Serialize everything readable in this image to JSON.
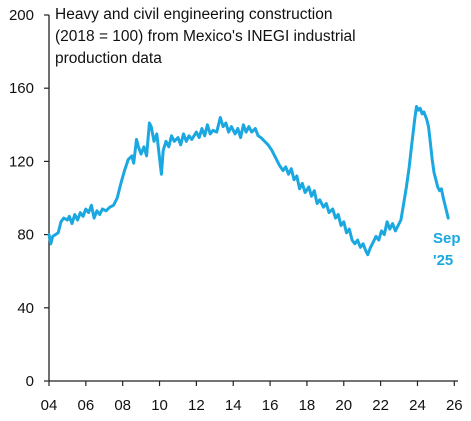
{
  "chart_data": {
    "type": "line",
    "title_lines": [
      "Heavy and civil engineering construction",
      "(2018 = 100) from Mexico's INEGI industrial",
      "production data"
    ],
    "xlabel": "",
    "ylabel": "",
    "xlim": [
      2004,
      2026.2
    ],
    "ylim": [
      0,
      200
    ],
    "yticks": [
      0,
      40,
      80,
      120,
      160,
      200
    ],
    "ytick_labels": [
      "0",
      "40",
      "80",
      "120",
      "160",
      "200"
    ],
    "xticks": [
      2004,
      2006,
      2008,
      2010,
      2012,
      2014,
      2016,
      2018,
      2020,
      2022,
      2024,
      2026
    ],
    "xtick_labels": [
      "04",
      "06",
      "08",
      "10",
      "12",
      "14",
      "16",
      "18",
      "20",
      "22",
      "24",
      "26"
    ],
    "grid": false,
    "annotation": {
      "line1": "Sep",
      "line2": "'25",
      "x": 2025.67,
      "y": 89
    },
    "series": [
      {
        "color": "#1BA8E0",
        "points": [
          [
            2004.0,
            80
          ],
          [
            2004.1,
            75
          ],
          [
            2004.2,
            79
          ],
          [
            2004.35,
            80
          ],
          [
            2004.5,
            81
          ],
          [
            2004.65,
            87
          ],
          [
            2004.8,
            89
          ],
          [
            2005.0,
            88
          ],
          [
            2005.1,
            90
          ],
          [
            2005.25,
            86
          ],
          [
            2005.4,
            91
          ],
          [
            2005.55,
            88
          ],
          [
            2005.7,
            92
          ],
          [
            2005.85,
            90
          ],
          [
            2006.0,
            94
          ],
          [
            2006.15,
            92
          ],
          [
            2006.3,
            96
          ],
          [
            2006.45,
            89
          ],
          [
            2006.6,
            93
          ],
          [
            2006.75,
            91
          ],
          [
            2006.9,
            94
          ],
          [
            2007.1,
            93
          ],
          [
            2007.3,
            95
          ],
          [
            2007.5,
            96
          ],
          [
            2007.7,
            100
          ],
          [
            2007.9,
            108
          ],
          [
            2008.1,
            115
          ],
          [
            2008.3,
            121
          ],
          [
            2008.5,
            123
          ],
          [
            2008.6,
            119
          ],
          [
            2008.75,
            132
          ],
          [
            2008.85,
            128
          ],
          [
            2009.0,
            124
          ],
          [
            2009.15,
            128
          ],
          [
            2009.3,
            123
          ],
          [
            2009.45,
            141
          ],
          [
            2009.55,
            139
          ],
          [
            2009.7,
            131
          ],
          [
            2009.85,
            135
          ],
          [
            2010.0,
            122
          ],
          [
            2010.1,
            113
          ],
          [
            2010.2,
            126
          ],
          [
            2010.35,
            131
          ],
          [
            2010.5,
            128
          ],
          [
            2010.65,
            134
          ],
          [
            2010.8,
            131
          ],
          [
            2011.0,
            133
          ],
          [
            2011.15,
            129
          ],
          [
            2011.3,
            135
          ],
          [
            2011.45,
            131
          ],
          [
            2011.6,
            134
          ],
          [
            2011.75,
            132
          ],
          [
            2012.0,
            136
          ],
          [
            2012.15,
            133
          ],
          [
            2012.3,
            138
          ],
          [
            2012.45,
            134
          ],
          [
            2012.6,
            140
          ],
          [
            2012.75,
            135
          ],
          [
            2012.9,
            137
          ],
          [
            2013.1,
            136
          ],
          [
            2013.3,
            144
          ],
          [
            2013.45,
            139
          ],
          [
            2013.6,
            141
          ],
          [
            2013.75,
            136
          ],
          [
            2013.9,
            139
          ],
          [
            2014.1,
            135
          ],
          [
            2014.25,
            138
          ],
          [
            2014.4,
            133
          ],
          [
            2014.55,
            140
          ],
          [
            2014.7,
            136
          ],
          [
            2014.85,
            139
          ],
          [
            2015.0,
            136
          ],
          [
            2015.2,
            138
          ],
          [
            2015.35,
            134
          ],
          [
            2015.5,
            133
          ],
          [
            2015.7,
            131
          ],
          [
            2015.9,
            129
          ],
          [
            2016.1,
            126
          ],
          [
            2016.3,
            122
          ],
          [
            2016.5,
            118
          ],
          [
            2016.7,
            115
          ],
          [
            2016.85,
            117
          ],
          [
            2017.0,
            113
          ],
          [
            2017.15,
            116
          ],
          [
            2017.3,
            110
          ],
          [
            2017.45,
            112
          ],
          [
            2017.6,
            105
          ],
          [
            2017.75,
            108
          ],
          [
            2017.9,
            103
          ],
          [
            2018.1,
            106
          ],
          [
            2018.25,
            101
          ],
          [
            2018.4,
            104
          ],
          [
            2018.55,
            97
          ],
          [
            2018.7,
            99
          ],
          [
            2018.9,
            95
          ],
          [
            2019.05,
            97
          ],
          [
            2019.2,
            92
          ],
          [
            2019.4,
            94
          ],
          [
            2019.55,
            89
          ],
          [
            2019.7,
            91
          ],
          [
            2019.85,
            85
          ],
          [
            2020.0,
            87
          ],
          [
            2020.15,
            81
          ],
          [
            2020.3,
            83
          ],
          [
            2020.45,
            77
          ],
          [
            2020.6,
            75
          ],
          [
            2020.75,
            77
          ],
          [
            2020.9,
            73
          ],
          [
            2021.05,
            75
          ],
          [
            2021.2,
            71
          ],
          [
            2021.3,
            69
          ],
          [
            2021.45,
            73
          ],
          [
            2021.6,
            76
          ],
          [
            2021.75,
            79
          ],
          [
            2021.9,
            77
          ],
          [
            2022.05,
            82
          ],
          [
            2022.2,
            80
          ],
          [
            2022.35,
            87
          ],
          [
            2022.5,
            83
          ],
          [
            2022.65,
            86
          ],
          [
            2022.8,
            82
          ],
          [
            2022.95,
            85
          ],
          [
            2023.1,
            88
          ],
          [
            2023.25,
            97
          ],
          [
            2023.4,
            106
          ],
          [
            2023.55,
            117
          ],
          [
            2023.7,
            130
          ],
          [
            2023.85,
            143
          ],
          [
            2023.95,
            150
          ],
          [
            2024.05,
            148
          ],
          [
            2024.15,
            149
          ],
          [
            2024.25,
            146
          ],
          [
            2024.35,
            147
          ],
          [
            2024.5,
            143
          ],
          [
            2024.6,
            139
          ],
          [
            2024.7,
            130
          ],
          [
            2024.8,
            121
          ],
          [
            2024.9,
            114
          ],
          [
            2025.0,
            110
          ],
          [
            2025.1,
            106
          ],
          [
            2025.2,
            104
          ],
          [
            2025.3,
            105
          ],
          [
            2025.4,
            100
          ],
          [
            2025.5,
            96
          ],
          [
            2025.6,
            92
          ],
          [
            2025.67,
            89
          ]
        ]
      }
    ]
  }
}
